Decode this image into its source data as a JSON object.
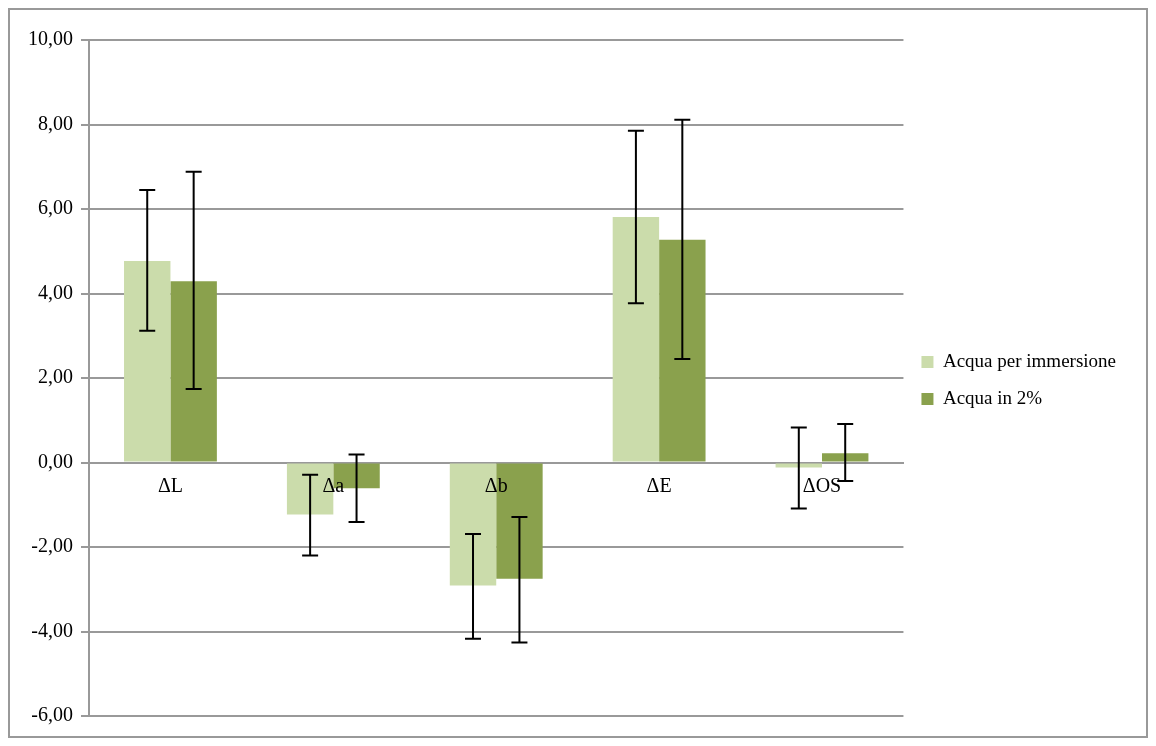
{
  "chart_data": {
    "type": "bar",
    "categories": [
      "ΔL",
      "Δa",
      "Δb",
      "ΔE",
      "ΔOS"
    ],
    "series": [
      {
        "name": "Acqua per immersione",
        "color": "#cbdcab",
        "values": [
          4.77,
          -1.23,
          -2.91,
          5.81,
          -0.12
        ],
        "errors": [
          [
            3.12,
            6.45
          ],
          [
            -2.2,
            -0.29
          ],
          [
            -4.17,
            -1.69
          ],
          [
            3.77,
            7.85
          ],
          [
            -1.09,
            0.83
          ]
        ]
      },
      {
        "name": "Acqua in 2%",
        "color": "#8aa14d",
        "values": [
          4.29,
          -0.61,
          -2.75,
          5.27,
          0.22
        ],
        "errors": [
          [
            1.74,
            6.88
          ],
          [
            -1.41,
            0.19
          ],
          [
            -4.26,
            -1.29
          ],
          [
            2.45,
            8.11
          ],
          [
            -0.44,
            0.91
          ]
        ]
      }
    ],
    "ylim": [
      -6,
      10
    ],
    "yticks": [
      {
        "value": -6,
        "label": "-6,00"
      },
      {
        "value": -4,
        "label": "-4,00"
      },
      {
        "value": -2,
        "label": "-2,00"
      },
      {
        "value": 0,
        "label": "0,00"
      },
      {
        "value": 2,
        "label": "2,00"
      },
      {
        "value": 4,
        "label": "4,00"
      },
      {
        "value": 6,
        "label": "6,00"
      },
      {
        "value": 8,
        "label": "8,00"
      },
      {
        "value": 10,
        "label": "10,00"
      }
    ],
    "grid": "y",
    "legend": "right"
  }
}
